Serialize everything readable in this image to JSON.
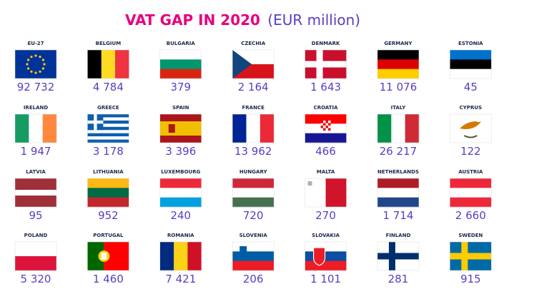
{
  "title": "VAT GAP IN 2020",
  "subtitle": "(EUR million)",
  "countries": [
    {
      "name": "EU-27",
      "value": "92 732"
    },
    {
      "name": "BELGIUM",
      "value": "4 784"
    },
    {
      "name": "BULGARIA",
      "value": "379"
    },
    {
      "name": "CZECHIA",
      "value": "2 164"
    },
    {
      "name": "DENMARK",
      "value": "1 643"
    },
    {
      "name": "GERMANY",
      "value": "11 076"
    },
    {
      "name": "ESTONIA",
      "value": "45"
    },
    {
      "name": "IRELAND",
      "value": "1 947"
    },
    {
      "name": "GREECE",
      "value": "3 178"
    },
    {
      "name": "SPAIN",
      "value": "3 396"
    },
    {
      "name": "FRANCE",
      "value": "13 962"
    },
    {
      "name": "CROATIA",
      "value": "466"
    },
    {
      "name": "ITALY",
      "value": "26 217"
    },
    {
      "name": "CYPRUS",
      "value": "122"
    },
    {
      "name": "LATVIA",
      "value": "95"
    },
    {
      "name": "LITHUANIA",
      "value": "952"
    },
    {
      "name": "LUXEMBOURG",
      "value": "240"
    },
    {
      "name": "HUNGARY",
      "value": "720"
    },
    {
      "name": "MALTA",
      "value": "270"
    },
    {
      "name": "NETHERLANDS",
      "value": "1 714"
    },
    {
      "name": "AUSTRIA",
      "value": "2 660"
    },
    {
      "name": "POLAND",
      "value": "5 320"
    },
    {
      "name": "PORTUGAL",
      "value": "1 460"
    },
    {
      "name": "ROMANIA",
      "value": "7 421"
    },
    {
      "name": "SLOVENIA",
      "value": "206"
    },
    {
      "name": "SLOVAKIA",
      "value": "1 101"
    },
    {
      "name": "FINLAND",
      "value": "281"
    },
    {
      "name": "SWEDEN",
      "value": "915"
    }
  ]
}
